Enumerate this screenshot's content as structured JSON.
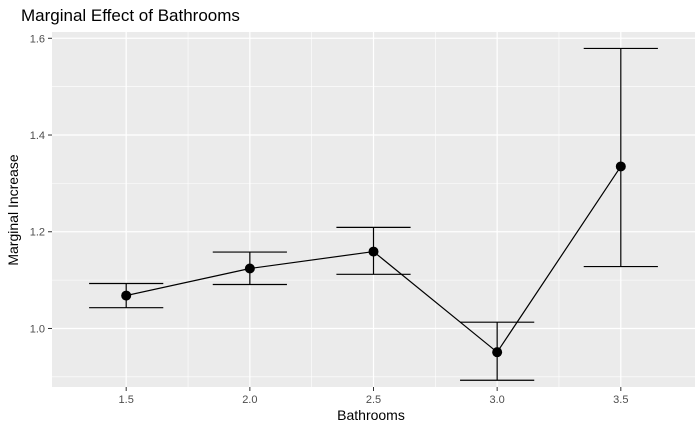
{
  "chart_data": {
    "type": "line",
    "title": "Marginal Effect of Bathrooms",
    "xlabel": "Bathrooms",
    "ylabel": "Marginal Increase",
    "x": [
      1.5,
      2.0,
      2.5,
      3.0,
      3.5
    ],
    "x_tick_labels": [
      "1.5",
      "2.0",
      "2.5",
      "3.0",
      "3.5"
    ],
    "y_ticks": [
      1.0,
      1.2,
      1.4,
      1.6
    ],
    "y_tick_labels": [
      "1.0",
      "1.2",
      "1.4",
      "1.6"
    ],
    "series": [
      {
        "values": [
          1.068,
          1.124,
          1.159,
          0.951,
          1.335
        ],
        "lower": [
          1.043,
          1.091,
          1.112,
          0.893,
          1.128
        ],
        "upper": [
          1.093,
          1.158,
          1.209,
          1.013,
          1.579
        ]
      }
    ],
    "xlim": [
      1.2,
      3.8
    ],
    "ylim": [
      0.879,
      1.613
    ],
    "grid": true,
    "panel_background": "#ebebeb",
    "grid_color": "#ffffff",
    "mark_color": "#000000"
  }
}
